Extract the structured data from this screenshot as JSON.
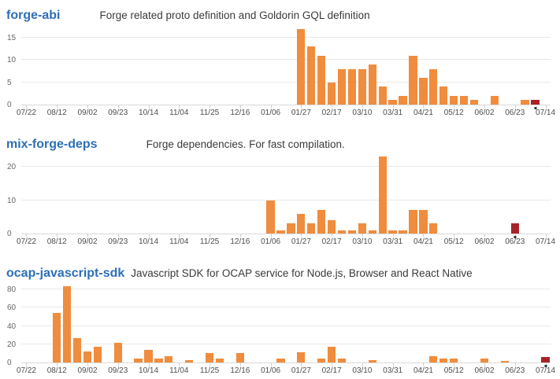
{
  "colors": {
    "bar": "#f08c3d",
    "current_bar": "#a6232a",
    "title_link": "#2d6fb7",
    "description_text": "#3a3a3a",
    "gridline": "#e9e9e9",
    "axis_line": "#d9d9d9",
    "tick_mark": "#cccccc",
    "y_label": "#666666",
    "x_label": "#4d4d4d",
    "marker_dot": "#333333"
  },
  "chart_data": [
    {
      "type": "bar",
      "title": "forge-abi",
      "subtitle": "Forge related proto definition and Goldorin GQL definition",
      "grid": true,
      "legend": false,
      "ylim": [
        0,
        18
      ],
      "yticks": [
        0,
        5,
        10,
        15
      ],
      "x_tick_labels": [
        "07/22",
        "08/12",
        "09/02",
        "09/23",
        "10/14",
        "11/04",
        "11/25",
        "12/16",
        "01/06",
        "01/27",
        "02/17",
        "03/10",
        "03/31",
        "04/21",
        "05/12",
        "06/02",
        "06/23",
        "07/14"
      ],
      "values": [
        0,
        0,
        0,
        0,
        0,
        0,
        0,
        0,
        0,
        0,
        0,
        0,
        0,
        0,
        0,
        0,
        0,
        0,
        0,
        0,
        0,
        0,
        0,
        0,
        0,
        0,
        0,
        17,
        13,
        11,
        5,
        8,
        8,
        8,
        9,
        4,
        1,
        2,
        11,
        6,
        8,
        4,
        2,
        2,
        1,
        0,
        2,
        0,
        0,
        1,
        1,
        0
      ],
      "current_week_index": 50
    },
    {
      "type": "bar",
      "title": "mix-forge-deps",
      "subtitle": "Forge dependencies. For fast compilation.",
      "grid": true,
      "legend": false,
      "ylim": [
        0,
        24
      ],
      "yticks": [
        0,
        10,
        20
      ],
      "x_tick_labels": [
        "07/22",
        "08/12",
        "09/02",
        "09/23",
        "10/14",
        "11/04",
        "11/25",
        "12/16",
        "01/06",
        "01/27",
        "02/17",
        "03/10",
        "03/31",
        "04/21",
        "05/12",
        "06/02",
        "06/23",
        "07/14"
      ],
      "values": [
        0,
        0,
        0,
        0,
        0,
        0,
        0,
        0,
        0,
        0,
        0,
        0,
        0,
        0,
        0,
        0,
        0,
        0,
        0,
        0,
        0,
        0,
        0,
        0,
        10,
        1,
        3,
        6,
        3,
        7,
        4,
        1,
        1,
        3,
        1,
        23,
        1,
        1,
        7,
        7,
        3,
        0,
        0,
        0,
        0,
        0,
        0,
        0,
        3,
        0,
        0,
        0
      ],
      "current_week_index": 48
    },
    {
      "type": "bar",
      "title": "ocap-javascript-sdk",
      "subtitle": "Javascript SDK for OCAP service for Node.js, Browser and React Native",
      "grid": true,
      "legend": false,
      "ylim": [
        0,
        88
      ],
      "yticks": [
        0,
        20,
        40,
        60,
        80
      ],
      "x_tick_labels": [
        "07/22",
        "08/12",
        "09/02",
        "09/23",
        "10/14",
        "11/04",
        "11/25",
        "12/16",
        "01/06",
        "01/27",
        "02/17",
        "03/10",
        "03/31",
        "04/21",
        "05/12",
        "06/02",
        "06/23",
        "07/14"
      ],
      "values": [
        0,
        0,
        0,
        54,
        84,
        27,
        12,
        17,
        0,
        22,
        0,
        4,
        14,
        4,
        7,
        0,
        3,
        0,
        10,
        4,
        0,
        10,
        0,
        0,
        0,
        4,
        0,
        11,
        0,
        4,
        17,
        4,
        0,
        0,
        3,
        0,
        0,
        0,
        0,
        0,
        7,
        4,
        4,
        0,
        0,
        4,
        0,
        2,
        0,
        0,
        0,
        6
      ],
      "current_week_index": 51
    }
  ]
}
